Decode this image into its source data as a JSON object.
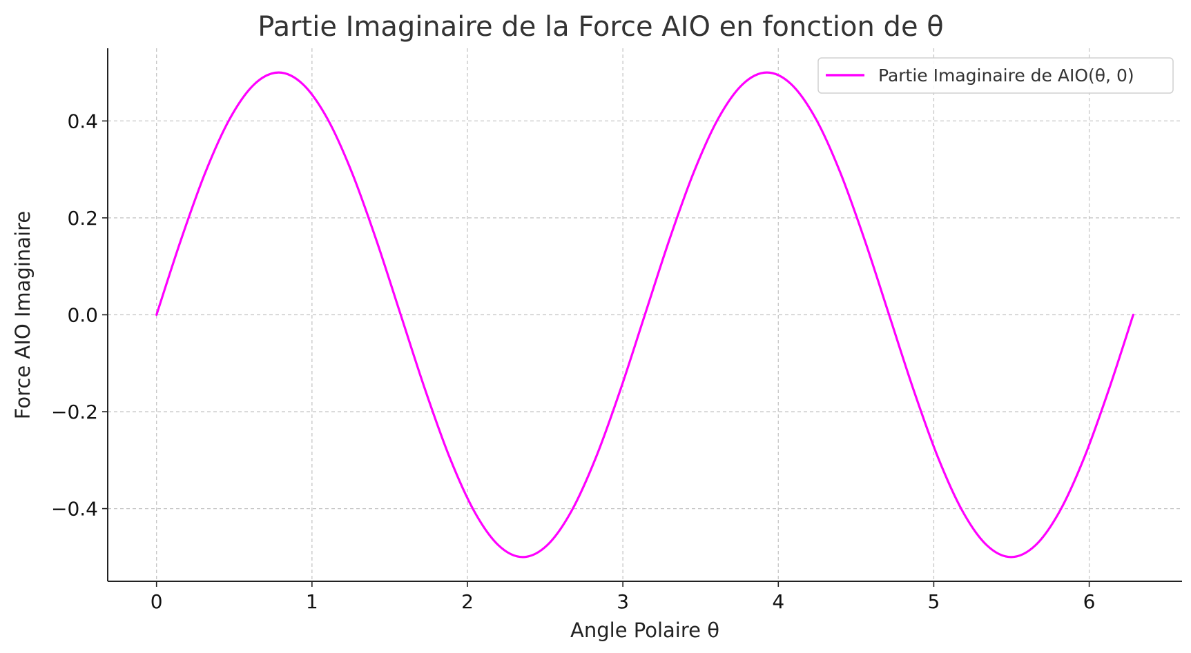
{
  "chart_data": {
    "type": "line",
    "title": "Partie Imaginaire de la Force AIO en fonction de θ",
    "xlabel": "Angle Polaire θ",
    "ylabel": "Force AIO Imaginaire",
    "xlim": [
      -0.314,
      6.597
    ],
    "ylim": [
      -0.55,
      0.55
    ],
    "x_ticks": [
      0,
      1,
      2,
      3,
      4,
      5,
      6
    ],
    "x_tick_labels": [
      "0",
      "1",
      "2",
      "3",
      "4",
      "5",
      "6"
    ],
    "y_ticks": [
      -0.4,
      -0.2,
      0.0,
      0.2,
      0.4
    ],
    "y_tick_labels": [
      "−0.4",
      "−0.2",
      "0.0",
      "0.2",
      "0.4"
    ],
    "grid": true,
    "legend_position": "top-right",
    "series": [
      {
        "name": "Partie Imaginaire de AIO(θ, 0)",
        "color": "#ff00ff",
        "x": [
          0,
          0.1571,
          0.3142,
          0.4712,
          0.6283,
          0.7854,
          0.9425,
          1.0996,
          1.2566,
          1.4137,
          1.5708,
          1.7279,
          1.885,
          2.042,
          2.1991,
          2.3562,
          2.5133,
          2.6704,
          2.8274,
          2.9845,
          3.1416,
          3.2987,
          3.4558,
          3.6128,
          3.7699,
          3.927,
          4.0841,
          4.2412,
          4.3982,
          4.5553,
          4.7124,
          4.8695,
          5.0265,
          5.1836,
          5.3407,
          5.4978,
          5.6549,
          5.8119,
          5.969,
          6.1261,
          6.2832
        ],
        "y": [
          0,
          0.1545,
          0.2939,
          0.4045,
          0.4755,
          0.5,
          0.4755,
          0.4045,
          0.2939,
          0.1545,
          0,
          -0.1545,
          -0.2939,
          -0.4045,
          -0.4755,
          -0.5,
          -0.4755,
          -0.4045,
          -0.2939,
          -0.1545,
          0,
          0.1545,
          0.2939,
          0.4045,
          0.4755,
          0.5,
          0.4755,
          0.4045,
          0.2939,
          0.1545,
          0,
          -0.1545,
          -0.2939,
          -0.4045,
          -0.4755,
          -0.5,
          -0.4755,
          -0.4045,
          -0.2939,
          -0.1545,
          0
        ]
      }
    ]
  }
}
